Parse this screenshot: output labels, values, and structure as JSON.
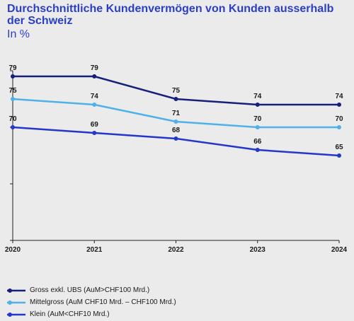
{
  "title": "Durchschnittliche Kundenvermögen von Kunden ausserhalb der Schweiz",
  "subtitle": "In %",
  "chart_data": {
    "type": "line",
    "title": "Durchschnittliche Kundenvermögen von Kunden ausserhalb der Schweiz",
    "subtitle": "In %",
    "x": [
      "2020",
      "2021",
      "2022",
      "2023",
      "2024"
    ],
    "ylim": [
      50,
      80
    ],
    "grid": false,
    "legend_position": "bottom",
    "series": [
      {
        "name": "Gross exkl. UBS (AuM>CHF100 Mrd.)",
        "values": [
          79,
          79,
          75,
          74,
          74
        ],
        "labels": [
          "79",
          "79",
          "75",
          "74",
          "74"
        ],
        "color": "#16207a"
      },
      {
        "name": "Mittelgross (AuM CHF10 Mrd. – CHF100 Mrd.)",
        "values": [
          75,
          74,
          71,
          70,
          70
        ],
        "labels": [
          "75",
          "74",
          "71",
          "70",
          "70"
        ],
        "color": "#4eb1e8"
      },
      {
        "name": "Klein (AuM<CHF10 Mrd.)",
        "values": [
          70,
          69,
          68,
          66,
          65
        ],
        "labels": [
          "70",
          "69",
          "68",
          "66",
          "65"
        ],
        "color": "#2337c9"
      }
    ]
  }
}
